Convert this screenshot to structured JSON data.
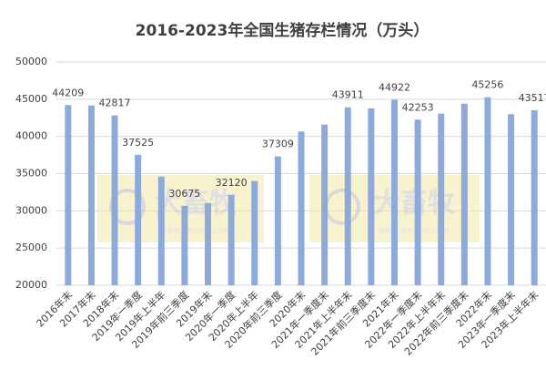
{
  "chart_data": {
    "type": "bar",
    "title": "2016-2023年全国生猪存栏情况（万头）",
    "categories": [
      "2016年末",
      "2017年末",
      "2018年末",
      "2019年一季度",
      "2019年上半年",
      "2019年前三季度",
      "2019年末",
      "2020年一季度",
      "2020年上半年",
      "2020年前三季度",
      "2020年末",
      "2021年一季度末",
      "2021年上半年末",
      "2021年前三季度末",
      "2021年末",
      "2022年一季度末",
      "2022年上半年末",
      "2022年前三季度末",
      "2022年末",
      "2023年一季度末",
      "2023年上半年末"
    ],
    "values": [
      44209,
      44158,
      42817,
      37525,
      34600,
      30675,
      31041,
      32120,
      33996,
      37309,
      40650,
      41595,
      43911,
      43764,
      44922,
      42253,
      43057,
      44394,
      45256,
      42990,
      43517
    ],
    "value_labels": [
      "44209",
      null,
      "42817",
      "37525",
      null,
      "30675",
      null,
      "32120",
      null,
      "37309",
      null,
      null,
      "43911",
      null,
      "44922",
      "42253",
      null,
      null,
      "45256",
      null,
      "43517"
    ],
    "color": "#8eaadb",
    "ylim": [
      20000,
      50000
    ],
    "yticks": [
      20000,
      25000,
      30000,
      35000,
      40000,
      45000,
      50000
    ],
    "grid": true,
    "watermark": {
      "name": "大畜牧",
      "url": "www.dxumu.com"
    }
  }
}
